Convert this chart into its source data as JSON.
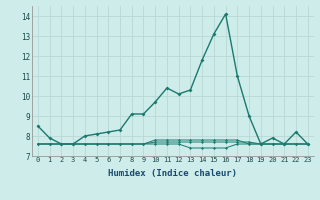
{
  "xlabel": "Humidex (Indice chaleur)",
  "x": [
    0,
    1,
    2,
    3,
    4,
    5,
    6,
    7,
    8,
    9,
    10,
    11,
    12,
    13,
    14,
    15,
    16,
    17,
    18,
    19,
    20,
    21,
    22,
    23
  ],
  "line1": [
    8.5,
    7.9,
    7.6,
    7.6,
    8.0,
    8.1,
    8.2,
    8.3,
    9.1,
    9.1,
    9.7,
    10.4,
    10.1,
    10.3,
    11.8,
    13.1,
    14.1,
    11.0,
    9.0,
    7.6,
    7.9,
    7.6,
    8.2,
    7.6
  ],
  "line2": [
    7.6,
    7.6,
    7.6,
    7.6,
    7.6,
    7.6,
    7.6,
    7.6,
    7.6,
    7.6,
    7.6,
    7.6,
    7.6,
    7.4,
    7.4,
    7.4,
    7.4,
    7.6,
    7.6,
    7.6,
    7.6,
    7.6,
    7.6,
    7.6
  ],
  "line3": [
    7.6,
    7.6,
    7.6,
    7.6,
    7.6,
    7.6,
    7.6,
    7.6,
    7.6,
    7.6,
    7.7,
    7.7,
    7.7,
    7.7,
    7.7,
    7.7,
    7.7,
    7.7,
    7.7,
    7.6,
    7.6,
    7.6,
    7.6,
    7.6
  ],
  "line4": [
    7.6,
    7.6,
    7.6,
    7.6,
    7.6,
    7.6,
    7.6,
    7.6,
    7.6,
    7.6,
    7.8,
    7.8,
    7.8,
    7.8,
    7.8,
    7.8,
    7.8,
    7.8,
    7.6,
    7.6,
    7.6,
    7.6,
    7.6,
    7.6
  ],
  "line_color": "#1a7a6e",
  "bg_color": "#ceecea",
  "grid_color": "#b8d8d6",
  "ylim": [
    7.0,
    14.5
  ],
  "yticks": [
    7,
    8,
    9,
    10,
    11,
    12,
    13,
    14
  ],
  "xlim": [
    -0.5,
    23.5
  ]
}
